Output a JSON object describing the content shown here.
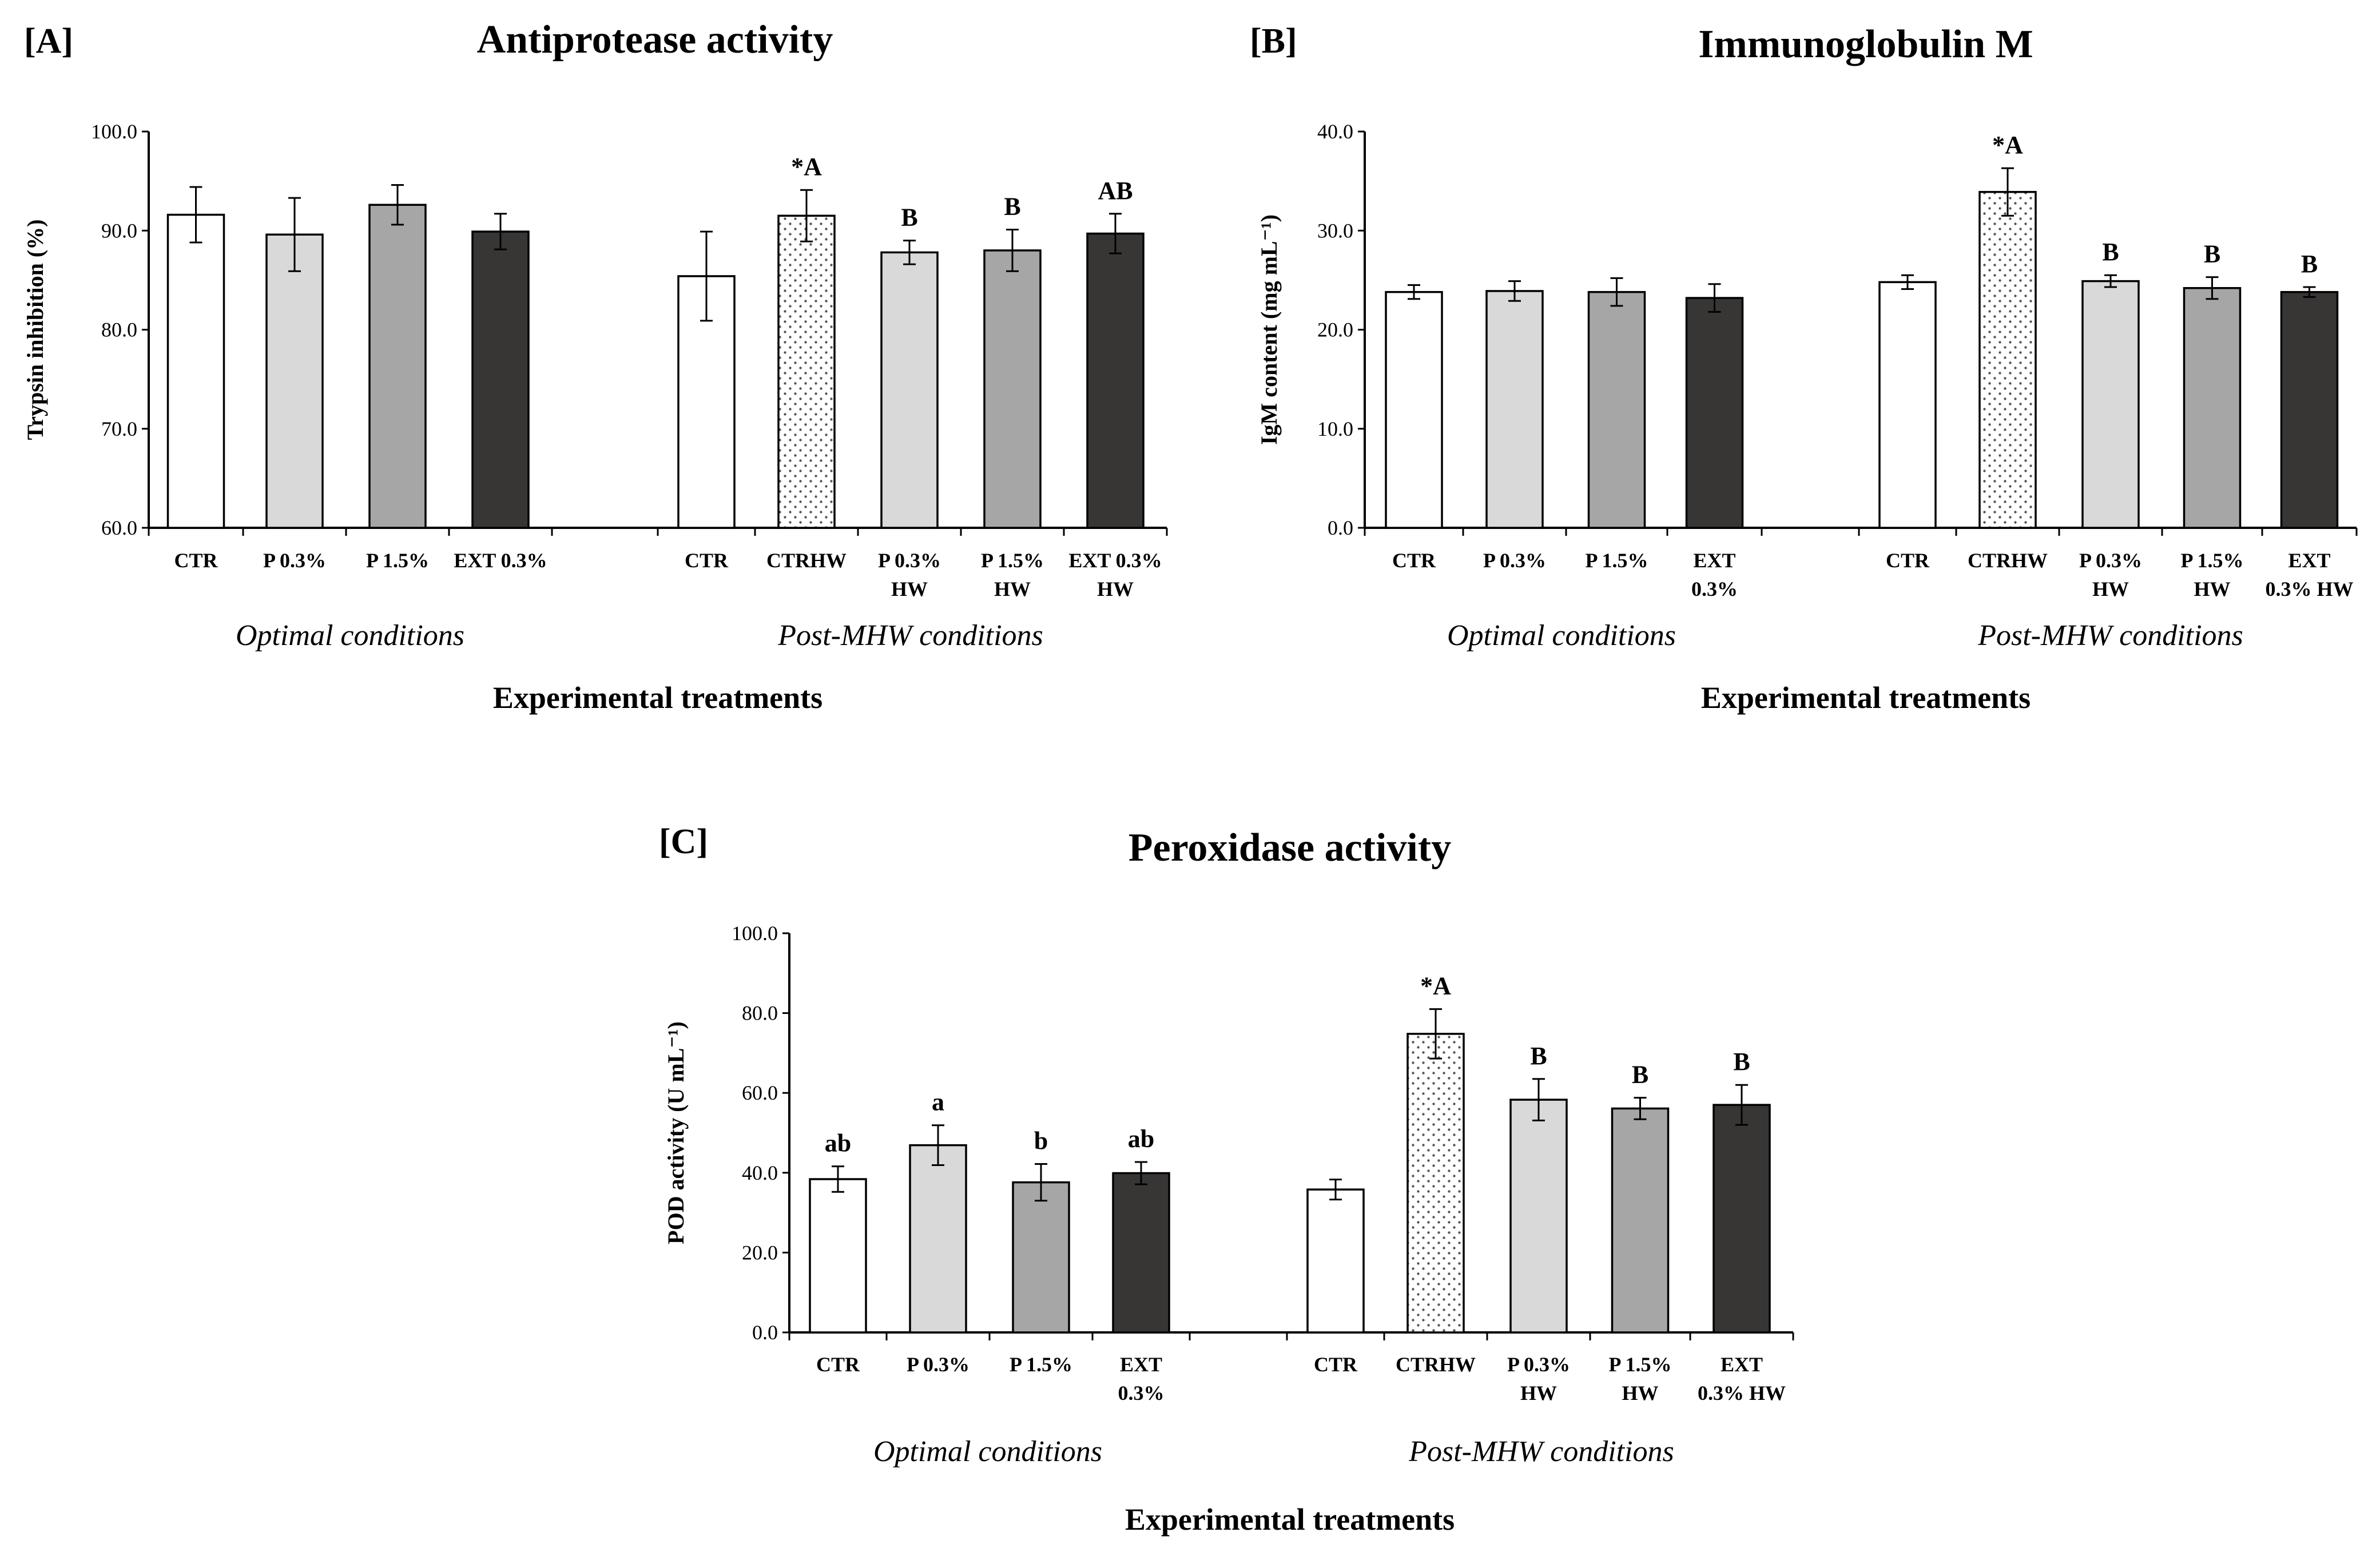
{
  "figure": {
    "colors": {
      "background": "#ffffff",
      "axis": "#000000",
      "ctr": "#ffffff",
      "ctrhw": "#ffffff",
      "p03": "#d9d9d9",
      "p15": "#a6a6a6",
      "ext": "#383535"
    },
    "group_labels": {
      "optimal": "Optimal conditions",
      "post": "Post-MHW conditions"
    },
    "xlabel": "Experimental treatments"
  },
  "chart_data": [
    {
      "panel": "[A]",
      "type": "bar",
      "title": "Antiprotease activity",
      "ylabel": "Trypsin inhibition (%)",
      "xlabel": "Experimental treatments",
      "ylim": [
        60,
        100
      ],
      "yticks": [
        "60.0",
        "70.0",
        "80.0",
        "90.0",
        "100.0"
      ],
      "groups": [
        "Optimal conditions",
        "Post-MHW conditions"
      ],
      "categories": [
        {
          "label": [
            "CTR"
          ],
          "value": 91.6,
          "err": 2.8,
          "letter": "",
          "style": "ctr",
          "group": 0
        },
        {
          "label": [
            "P 0.3%"
          ],
          "value": 89.6,
          "err": 3.7,
          "letter": "",
          "style": "p03",
          "group": 0
        },
        {
          "label": [
            "P 1.5%"
          ],
          "value": 92.6,
          "err": 2.0,
          "letter": "",
          "style": "p15",
          "group": 0
        },
        {
          "label": [
            "EXT 0.3%"
          ],
          "value": 89.9,
          "err": 1.8,
          "letter": "",
          "style": "ext",
          "group": 0
        },
        {
          "label": [
            "CTR"
          ],
          "value": 85.4,
          "err": 4.5,
          "letter": "",
          "style": "ctr",
          "group": 1
        },
        {
          "label": [
            "CTRHW"
          ],
          "value": 91.5,
          "err": 2.6,
          "letter": "*A",
          "style": "ctrhw",
          "group": 1
        },
        {
          "label": [
            "P 0.3%",
            "HW"
          ],
          "value": 87.8,
          "err": 1.2,
          "letter": "B",
          "style": "p03",
          "group": 1
        },
        {
          "label": [
            "P 1.5%",
            "HW"
          ],
          "value": 88.0,
          "err": 2.1,
          "letter": "B",
          "style": "p15",
          "group": 1
        },
        {
          "label": [
            "EXT 0.3%",
            "HW"
          ],
          "value": 89.7,
          "err": 2.0,
          "letter": "AB",
          "style": "ext",
          "group": 1
        }
      ]
    },
    {
      "panel": "[B]",
      "type": "bar",
      "title": "Immunoglobulin M",
      "ylabel": "IgM content (mg mL⁻¹)",
      "xlabel": "Experimental treatments",
      "ylim": [
        0,
        40
      ],
      "yticks": [
        "0.0",
        "10.0",
        "20.0",
        "30.0",
        "40.0"
      ],
      "groups": [
        "Optimal conditions",
        "Post-MHW conditions"
      ],
      "categories": [
        {
          "label": [
            "CTR"
          ],
          "value": 23.8,
          "err": 0.7,
          "letter": "",
          "style": "ctr",
          "group": 0
        },
        {
          "label": [
            "P 0.3%"
          ],
          "value": 23.9,
          "err": 1.0,
          "letter": "",
          "style": "p03",
          "group": 0
        },
        {
          "label": [
            "P 1.5%"
          ],
          "value": 23.8,
          "err": 1.4,
          "letter": "",
          "style": "p15",
          "group": 0
        },
        {
          "label": [
            "EXT",
            "0.3%"
          ],
          "value": 23.2,
          "err": 1.4,
          "letter": "",
          "style": "ext",
          "group": 0
        },
        {
          "label": [
            "CTR"
          ],
          "value": 24.8,
          "err": 0.7,
          "letter": "",
          "style": "ctr",
          "group": 1
        },
        {
          "label": [
            "CTRHW"
          ],
          "value": 33.9,
          "err": 2.4,
          "letter": "*A",
          "style": "ctrhw",
          "group": 1
        },
        {
          "label": [
            "P 0.3%",
            "HW"
          ],
          "value": 24.9,
          "err": 0.6,
          "letter": "B",
          "style": "p03",
          "group": 1
        },
        {
          "label": [
            "P 1.5%",
            "HW"
          ],
          "value": 24.2,
          "err": 1.1,
          "letter": "B",
          "style": "p15",
          "group": 1
        },
        {
          "label": [
            "EXT",
            "0.3% HW"
          ],
          "value": 23.8,
          "err": 0.5,
          "letter": "B",
          "style": "ext",
          "group": 1
        }
      ]
    },
    {
      "panel": "[C]",
      "type": "bar",
      "title": "Peroxidase activity",
      "ylabel": "POD activity (U mL⁻¹)",
      "xlabel": "Experimental treatments",
      "ylim": [
        0,
        100
      ],
      "yticks": [
        "0.0",
        "20.0",
        "40.0",
        "60.0",
        "80.0",
        "100.0"
      ],
      "groups": [
        "Optimal conditions",
        "Post-MHW conditions"
      ],
      "categories": [
        {
          "label": [
            "CTR"
          ],
          "value": 38.4,
          "err": 3.2,
          "letter": "ab",
          "style": "ctr",
          "group": 0
        },
        {
          "label": [
            "P 0.3%"
          ],
          "value": 46.9,
          "err": 5.0,
          "letter": "a",
          "style": "p03",
          "group": 0
        },
        {
          "label": [
            "P 1.5%"
          ],
          "value": 37.6,
          "err": 4.6,
          "letter": "b",
          "style": "p15",
          "group": 0
        },
        {
          "label": [
            "EXT",
            "0.3%"
          ],
          "value": 39.9,
          "err": 2.8,
          "letter": "ab",
          "style": "ext",
          "group": 0
        },
        {
          "label": [
            "CTR"
          ],
          "value": 35.8,
          "err": 2.5,
          "letter": "",
          "style": "ctr",
          "group": 1
        },
        {
          "label": [
            "CTRHW"
          ],
          "value": 74.8,
          "err": 6.2,
          "letter": "*A",
          "style": "ctrhw",
          "group": 1
        },
        {
          "label": [
            "P 0.3%",
            "HW"
          ],
          "value": 58.3,
          "err": 5.2,
          "letter": "B",
          "style": "p03",
          "group": 1
        },
        {
          "label": [
            "P 1.5%",
            "HW"
          ],
          "value": 56.1,
          "err": 2.7,
          "letter": "B",
          "style": "p15",
          "group": 1
        },
        {
          "label": [
            "EXT",
            "0.3% HW"
          ],
          "value": 57.0,
          "err": 5.0,
          "letter": "B",
          "style": "ext",
          "group": 1
        }
      ]
    }
  ]
}
